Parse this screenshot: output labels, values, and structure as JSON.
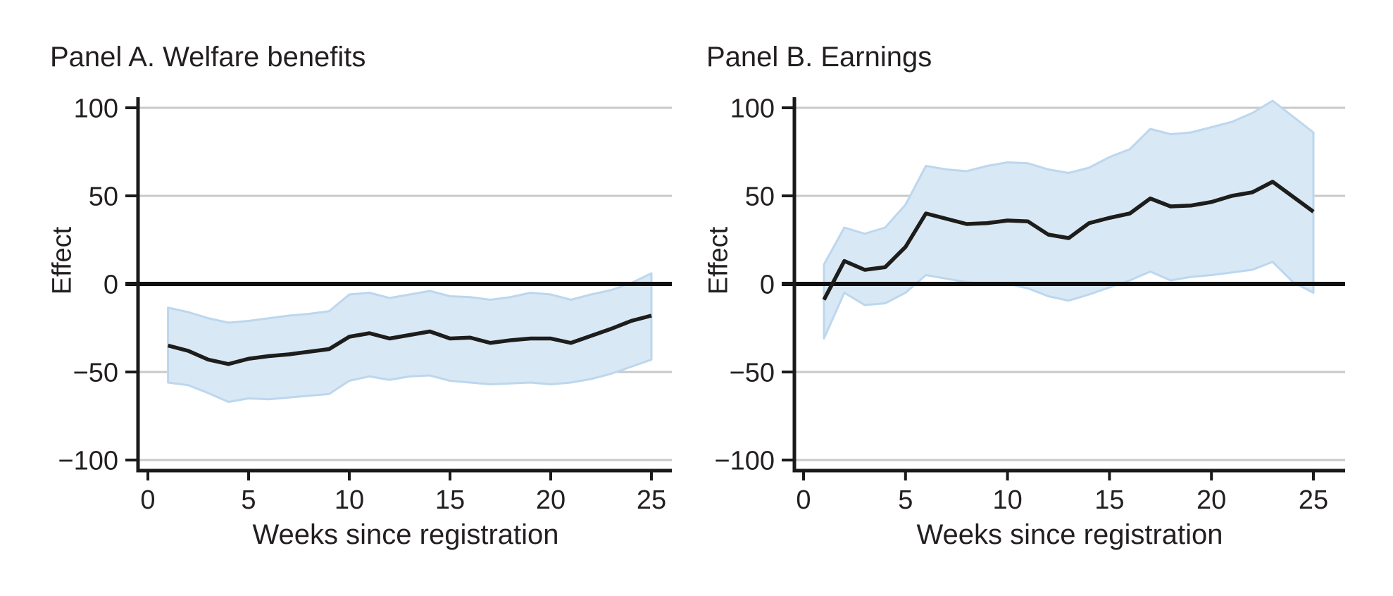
{
  "style": {
    "band_fill": "#d9e8f5",
    "band_edge": "#bcd7ee",
    "line_color": "#1d1d1b",
    "zero_line_color": "#0f0f0f",
    "grid_color": "#c9c9ca",
    "axis_color": "#1a1a1a",
    "text_color": "#231f20"
  },
  "chart_data": [
    {
      "type": "line",
      "title": "Panel A. Welfare benefits",
      "xlabel": "Weeks since registration",
      "ylabel": "Effect",
      "legend": "none",
      "grid": "horizontal",
      "zero_line": true,
      "x_ticks": [
        0,
        5,
        10,
        15,
        20,
        25
      ],
      "x_tick_labels": [
        "0",
        "5",
        "10",
        "15",
        "20",
        "25"
      ],
      "y_ticks": [
        100,
        50,
        0,
        -50,
        -100
      ],
      "y_tick_labels": [
        "100",
        "50",
        "0",
        "−50",
        "−100"
      ],
      "xlim": [
        -0.5,
        26.2
      ],
      "ylim": [
        -106,
        105
      ],
      "weeks": [
        1,
        2,
        3,
        4,
        5,
        6,
        7,
        8,
        9,
        10,
        11,
        12,
        13,
        14,
        15,
        16,
        17,
        18,
        19,
        20,
        21,
        22,
        23,
        24,
        25
      ],
      "effect": [
        -35,
        -38,
        -43,
        -45.5,
        -42.5,
        -41,
        -40,
        -38.5,
        -37,
        -30,
        -28,
        -31,
        -29,
        -27,
        -31,
        -30.5,
        -33.5,
        -32,
        -31,
        -31,
        -33.5,
        -29.5,
        -25.5,
        -21,
        -18
      ],
      "ci_upper": [
        -13.5,
        -16,
        -19.5,
        -22,
        -21,
        -19.5,
        -18,
        -17,
        -15.5,
        -6,
        -5,
        -8,
        -6,
        -4,
        -7,
        -7.5,
        -9,
        -7.5,
        -5,
        -6,
        -9,
        -6,
        -3.5,
        0.5,
        6
      ],
      "ci_lower": [
        -56,
        -57.5,
        -62,
        -67,
        -65,
        -65.5,
        -64.5,
        -63.5,
        -62.5,
        -55,
        -52.5,
        -54.5,
        -52.5,
        -52,
        -55,
        -56,
        -57,
        -56.5,
        -56,
        -57,
        -56,
        -54,
        -51,
        -47,
        -43
      ]
    },
    {
      "type": "line",
      "title": "Panel B. Earnings",
      "xlabel": "Weeks since registration",
      "ylabel": "Effect",
      "legend": "none",
      "grid": "horizontal",
      "zero_line": true,
      "x_ticks": [
        0,
        5,
        10,
        15,
        20,
        25
      ],
      "x_tick_labels": [
        "0",
        "5",
        "10",
        "15",
        "20",
        "25"
      ],
      "y_ticks": [
        100,
        50,
        0,
        -50,
        -100
      ],
      "y_tick_labels": [
        "100",
        "50",
        "0",
        "−50",
        "−100"
      ],
      "xlim": [
        -0.45,
        26.6
      ],
      "ylim": [
        -106,
        105
      ],
      "weeks": [
        1,
        2,
        3,
        4,
        5,
        6,
        7,
        8,
        9,
        10,
        11,
        12,
        13,
        14,
        15,
        16,
        17,
        18,
        19,
        20,
        21,
        22,
        23,
        24,
        25
      ],
      "effect": [
        -9,
        13,
        8,
        9.5,
        21,
        40,
        37,
        34,
        34.5,
        36,
        35.5,
        28,
        26,
        34.5,
        37.5,
        40,
        48.5,
        44,
        44.5,
        46.5,
        50,
        52,
        58,
        49.5,
        41
      ],
      "ci_upper": [
        11,
        32,
        28.5,
        32,
        45,
        67,
        65,
        64,
        67,
        69,
        68.5,
        65,
        63,
        66,
        72,
        76.5,
        88,
        85,
        86,
        89,
        92,
        97,
        104,
        95,
        86
      ],
      "ci_lower": [
        -31,
        -5,
        -12,
        -11,
        -5,
        5,
        3,
        1,
        0,
        0,
        -2.5,
        -7,
        -9.5,
        -6,
        -2,
        2,
        7,
        2,
        4,
        5,
        6.5,
        8,
        12.5,
        1,
        -5
      ]
    }
  ]
}
